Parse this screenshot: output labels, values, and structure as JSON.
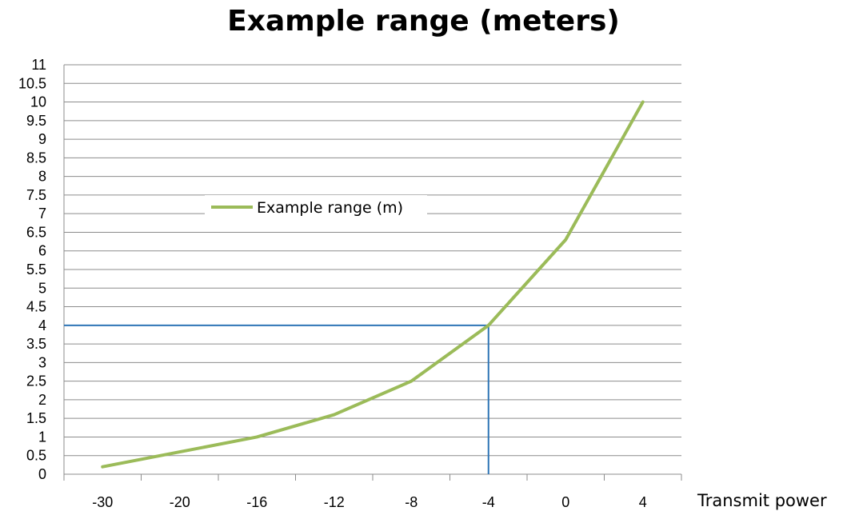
{
  "chart_data": {
    "type": "line",
    "title": "Example range (meters)",
    "xlabel": "Transmit power",
    "ylabel": "",
    "categories": [
      "-30",
      "-20",
      "-16",
      "-12",
      "-8",
      "-4",
      "0",
      "4"
    ],
    "series": [
      {
        "name": "Example range (m)",
        "color": "#9bbb59",
        "values": [
          0.2,
          0.6,
          1.0,
          1.6,
          2.5,
          4.0,
          6.3,
          10.0
        ]
      }
    ],
    "ylim": [
      0,
      11
    ],
    "ystep": 0.5,
    "y_ticks": [
      "0",
      "0.5",
      "1",
      "1.5",
      "2",
      "2.5",
      "3",
      "3.5",
      "4",
      "4.5",
      "5",
      "5.5",
      "6",
      "6.5",
      "7",
      "7.5",
      "8",
      "8.5",
      "9",
      "9.5",
      "10",
      "10.5",
      "11"
    ],
    "grid": true,
    "legend_position": "upper-left inside plot",
    "reference_lines": {
      "x_category": "-4",
      "y_value": 4,
      "color": "#2e75b6"
    }
  }
}
